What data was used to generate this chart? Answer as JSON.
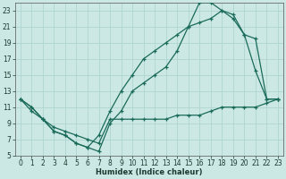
{
  "xlabel": "Humidex (Indice chaleur)",
  "bg_color": "#cce8e4",
  "grid_color": "#afd4d0",
  "line_color": "#1a6b5a",
  "xlim": [
    -0.5,
    23.5
  ],
  "ylim": [
    5,
    24
  ],
  "xticks": [
    0,
    1,
    2,
    3,
    4,
    5,
    6,
    7,
    8,
    9,
    10,
    11,
    12,
    13,
    14,
    15,
    16,
    17,
    18,
    19,
    20,
    21,
    22,
    23
  ],
  "yticks": [
    5,
    7,
    9,
    11,
    13,
    15,
    17,
    19,
    21,
    23
  ],
  "line1_x": [
    0,
    1,
    2,
    3,
    4,
    5,
    6,
    7,
    8,
    9,
    10,
    11,
    12,
    13,
    14,
    15,
    16,
    17,
    18,
    19,
    20,
    21,
    22,
    23
  ],
  "line1_y": [
    12,
    11,
    9.5,
    8,
    7.5,
    6.5,
    6.0,
    5.5,
    9.0,
    10.5,
    13,
    14,
    15,
    16,
    18,
    21,
    24,
    24,
    23,
    22.5,
    20,
    15.5,
    12,
    12
  ],
  "line2_x": [
    0,
    1,
    2,
    3,
    4,
    5,
    6,
    7,
    8,
    9,
    10,
    11,
    12,
    13,
    14,
    15,
    16,
    17,
    18,
    19,
    20,
    21,
    22,
    23
  ],
  "line2_y": [
    12,
    11,
    9.5,
    8,
    7.5,
    6.5,
    6.0,
    7.5,
    10.5,
    13,
    15,
    17,
    18,
    19,
    20,
    21,
    21.5,
    22,
    23,
    22,
    20,
    19.5,
    12,
    12
  ],
  "line3_x": [
    0,
    1,
    2,
    3,
    4,
    5,
    6,
    7,
    8,
    9,
    10,
    11,
    12,
    13,
    14,
    15,
    16,
    17,
    18,
    19,
    20,
    21,
    22,
    23
  ],
  "line3_y": [
    12,
    10.5,
    9.5,
    8.5,
    8.0,
    7.5,
    7.0,
    6.5,
    9.5,
    9.5,
    9.5,
    9.5,
    9.5,
    9.5,
    10,
    10,
    10,
    10.5,
    11,
    11,
    11,
    11,
    11.5,
    12
  ],
  "marker": "+",
  "markersize": 3,
  "linewidth": 0.9
}
